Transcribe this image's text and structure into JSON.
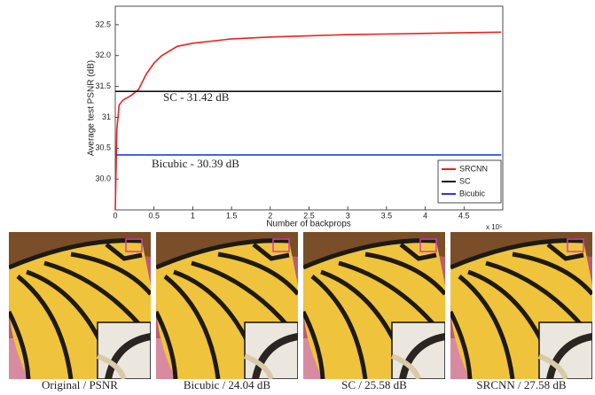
{
  "chart_data": {
    "type": "line",
    "x_label": "Number of backprops",
    "y_label": "Average test PSNR (dB)",
    "x_multiplier": "x 10⁵",
    "xlim": [
      0,
      5
    ],
    "ylim": [
      29.5,
      32.8
    ],
    "xticks": [
      0,
      0.5,
      1,
      1.5,
      2,
      2.5,
      3,
      3.5,
      4,
      4.5
    ],
    "yticks": [
      {
        "value": 30,
        "label": "30.0"
      },
      30.5,
      31,
      31.5,
      {
        "value": 32,
        "label": "32.0"
      },
      32.5
    ],
    "legend": "lower right",
    "series": [
      {
        "name": "SRCNN",
        "color": "#e8231f",
        "x": [
          0,
          0.02,
          0.05,
          0.1,
          0.2,
          0.3,
          0.4,
          0.5,
          0.6,
          0.8,
          1.0,
          1.5,
          2,
          2.5,
          3,
          3.5,
          4,
          4.5,
          4.98
        ],
        "values": [
          29.5,
          30.8,
          31.2,
          31.28,
          31.35,
          31.45,
          31.7,
          31.88,
          32.0,
          32.15,
          32.2,
          32.27,
          32.3,
          32.32,
          32.34,
          32.35,
          32.36,
          32.37,
          32.38
        ]
      },
      {
        "name": "SC",
        "color": "#111111",
        "x": [
          0,
          4.98
        ],
        "values": [
          31.42,
          31.42
        ]
      },
      {
        "name": "Bicubic",
        "color": "#1f3fe0",
        "x": [
          0,
          4.98
        ],
        "values": [
          30.39,
          30.39
        ]
      }
    ],
    "annotations": [
      "SC - 31.42 dB",
      "Bicubic - 30.39 dB"
    ]
  },
  "images": {
    "captions": [
      "Original / PSNR",
      "Bicubic / 24.04 dB",
      "SC / 25.58 dB",
      "SRCNN / 27.58 dB"
    ]
  }
}
